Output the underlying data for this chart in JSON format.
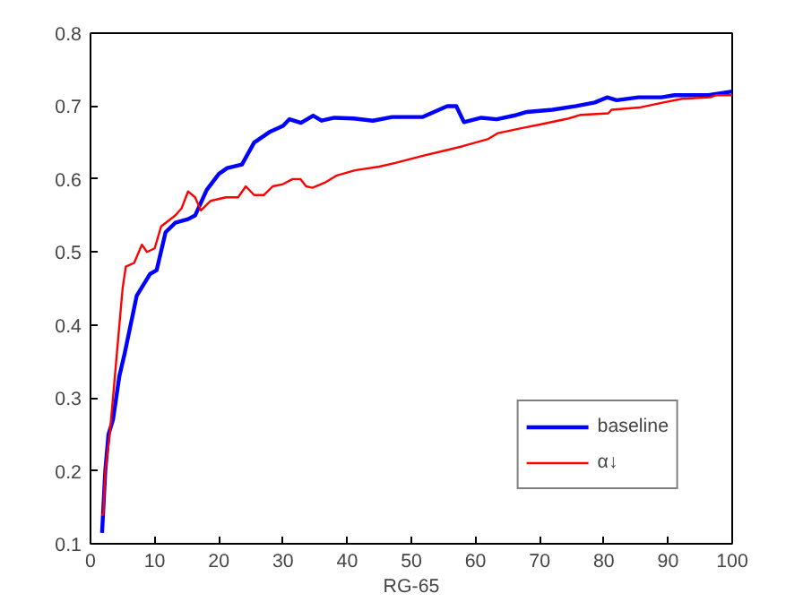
{
  "chart_data": {
    "type": "line",
    "xlabel": "RG-65",
    "xlim": [
      0,
      100
    ],
    "ylim": [
      0.1,
      0.8
    ],
    "xticks": [
      0,
      10,
      20,
      30,
      40,
      50,
      60,
      70,
      80,
      90,
      100
    ],
    "yticks": [
      0.1,
      0.2,
      0.3,
      0.4,
      0.5,
      0.6,
      0.7,
      0.8
    ],
    "grid": false,
    "legend": "bottom right",
    "marker": "none",
    "line_style": "solid",
    "series": [
      {
        "name": "baseline",
        "color": "#0000ff",
        "x": [
          1.8,
          2.3,
          2.8,
          3.5,
          4,
          4.5,
          5.3,
          7.2,
          9.3,
          10.3,
          11.7,
          13.2,
          15.2,
          16.3,
          18.1,
          20,
          21.3,
          23.6,
          25.5,
          28,
          30,
          31,
          32.8,
          34.7,
          36,
          38,
          41,
          44,
          47,
          51.7,
          55.6,
          57,
          58.2,
          60.9,
          63.3,
          66,
          68,
          72,
          75.7,
          78.6,
          80.5,
          82,
          85.4,
          89,
          91,
          96.3,
          100
        ],
        "values": [
          0.115,
          0.2,
          0.25,
          0.27,
          0.3,
          0.33,
          0.36,
          0.44,
          0.47,
          0.475,
          0.527,
          0.54,
          0.545,
          0.55,
          0.585,
          0.607,
          0.615,
          0.62,
          0.65,
          0.665,
          0.673,
          0.682,
          0.677,
          0.687,
          0.68,
          0.684,
          0.683,
          0.68,
          0.685,
          0.685,
          0.7,
          0.7,
          0.678,
          0.684,
          0.682,
          0.687,
          0.692,
          0.695,
          0.7,
          0.705,
          0.712,
          0.708,
          0.712,
          0.712,
          0.715,
          0.715,
          0.72
        ]
      },
      {
        "name": "α↓",
        "color": "#ff0000",
        "x": [
          1.7,
          2,
          2.3,
          3,
          3.5,
          4,
          4.5,
          5,
          5.5,
          6.8,
          8,
          8.8,
          10,
          11,
          13.2,
          14.2,
          15.2,
          16.3,
          17.2,
          18.7,
          21.1,
          23,
          24.2,
          25.5,
          27,
          28.4,
          30,
          31.5,
          32.7,
          33.6,
          34.6,
          36.5,
          38.4,
          41.2,
          45,
          47.5,
          51.8,
          55.7,
          58,
          62,
          63.5,
          67.3,
          70.2,
          74.5,
          76.4,
          80.7,
          81.2,
          85.5,
          89.3,
          92.2,
          96.6,
          97.5,
          100
        ],
        "values": [
          0.14,
          0.14,
          0.2,
          0.25,
          0.3,
          0.35,
          0.4,
          0.45,
          0.48,
          0.485,
          0.51,
          0.5,
          0.505,
          0.535,
          0.55,
          0.56,
          0.583,
          0.575,
          0.557,
          0.57,
          0.575,
          0.575,
          0.59,
          0.578,
          0.578,
          0.59,
          0.593,
          0.6,
          0.6,
          0.59,
          0.588,
          0.595,
          0.605,
          0.612,
          0.617,
          0.622,
          0.632,
          0.64,
          0.645,
          0.655,
          0.663,
          0.67,
          0.675,
          0.683,
          0.688,
          0.69,
          0.695,
          0.698,
          0.705,
          0.71,
          0.712,
          0.715,
          0.715
        ]
      }
    ]
  }
}
